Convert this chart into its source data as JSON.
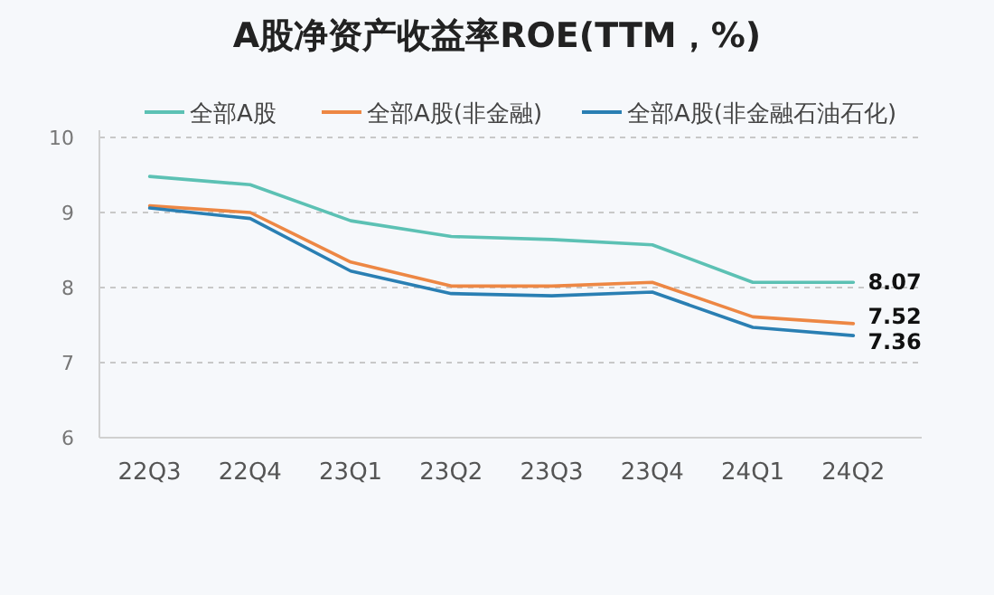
{
  "chart_data": {
    "type": "line",
    "title": "A股净资产收益率ROE(TTM，%)",
    "categories": [
      "22Q3",
      "22Q4",
      "23Q1",
      "23Q2",
      "23Q3",
      "23Q4",
      "24Q1",
      "24Q2"
    ],
    "series": [
      {
        "name": "全部A股",
        "color": "#5cc1b4",
        "values": [
          9.48,
          9.37,
          8.89,
          8.68,
          8.64,
          8.57,
          8.07,
          8.07
        ],
        "value_labels": [
          null,
          null,
          null,
          null,
          null,
          null,
          null,
          "8.07"
        ]
      },
      {
        "name": "全部A股(非金融)",
        "color": "#ed8744",
        "values": [
          9.09,
          9.0,
          8.34,
          8.02,
          8.02,
          8.07,
          7.61,
          7.52
        ],
        "value_labels": [
          null,
          null,
          null,
          null,
          null,
          null,
          null,
          "7.52"
        ]
      },
      {
        "name": "全部A股(非金融石油石化)",
        "color": "#2a7fb3",
        "values": [
          9.06,
          8.92,
          8.22,
          7.92,
          7.89,
          7.94,
          7.47,
          7.36
        ],
        "value_labels": [
          null,
          null,
          null,
          null,
          null,
          null,
          null,
          "7.36"
        ]
      }
    ],
    "ylim": [
      6,
      10
    ],
    "yticks": [
      6,
      7,
      8,
      9,
      10
    ],
    "grid": "y",
    "legend": "top",
    "marker": "none",
    "line_style": "solid"
  }
}
